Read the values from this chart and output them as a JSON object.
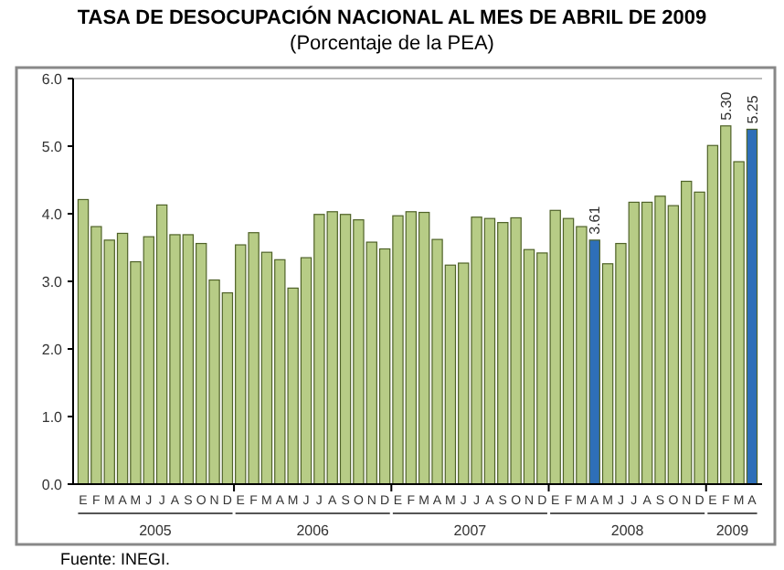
{
  "chart_data": {
    "type": "bar",
    "title": "TASA DE DESOCUPACIÓN NACIONAL AL MES DE ABRIL DE 2009",
    "subtitle": "(Porcentaje de la PEA)",
    "categories": [
      "E",
      "F",
      "M",
      "A",
      "M",
      "J",
      "J",
      "A",
      "S",
      "O",
      "N",
      "D",
      "E",
      "F",
      "M",
      "A",
      "M",
      "J",
      "J",
      "A",
      "S",
      "O",
      "N",
      "D",
      "E",
      "F",
      "M",
      "A",
      "M",
      "J",
      "J",
      "A",
      "S",
      "O",
      "N",
      "D",
      "E",
      "F",
      "M",
      "A",
      "M",
      "J",
      "J",
      "A",
      "S",
      "O",
      "N",
      "D",
      "E",
      "F",
      "M",
      "A"
    ],
    "values": [
      4.21,
      3.81,
      3.61,
      3.71,
      3.29,
      3.66,
      4.13,
      3.69,
      3.69,
      3.56,
      3.02,
      2.83,
      3.54,
      3.72,
      3.43,
      3.32,
      2.9,
      3.35,
      3.99,
      4.03,
      3.99,
      3.91,
      3.58,
      3.48,
      3.97,
      4.03,
      4.02,
      3.62,
      3.24,
      3.27,
      3.95,
      3.93,
      3.87,
      3.94,
      3.47,
      3.42,
      4.05,
      3.93,
      3.81,
      3.61,
      3.26,
      3.56,
      4.17,
      4.17,
      4.26,
      4.12,
      4.48,
      4.32,
      5.01,
      5.3,
      4.77,
      5.25
    ],
    "colors": [
      "#b7cc86",
      "#b7cc86",
      "#b7cc86",
      "#b7cc86",
      "#b7cc86",
      "#b7cc86",
      "#b7cc86",
      "#b7cc86",
      "#b7cc86",
      "#b7cc86",
      "#b7cc86",
      "#b7cc86",
      "#b7cc86",
      "#b7cc86",
      "#b7cc86",
      "#b7cc86",
      "#b7cc86",
      "#b7cc86",
      "#b7cc86",
      "#b7cc86",
      "#b7cc86",
      "#b7cc86",
      "#b7cc86",
      "#b7cc86",
      "#b7cc86",
      "#b7cc86",
      "#b7cc86",
      "#b7cc86",
      "#b7cc86",
      "#b7cc86",
      "#b7cc86",
      "#b7cc86",
      "#b7cc86",
      "#b7cc86",
      "#b7cc86",
      "#b7cc86",
      "#b7cc86",
      "#b7cc86",
      "#b7cc86",
      "#2e6fb8",
      "#b7cc86",
      "#b7cc86",
      "#b7cc86",
      "#b7cc86",
      "#b7cc86",
      "#b7cc86",
      "#b7cc86",
      "#b7cc86",
      "#b7cc86",
      "#b7cc86",
      "#b7cc86",
      "#2e6fb8"
    ],
    "value_labels": [
      null,
      null,
      null,
      null,
      null,
      null,
      null,
      null,
      null,
      null,
      null,
      null,
      null,
      null,
      null,
      null,
      null,
      null,
      null,
      null,
      null,
      null,
      null,
      null,
      null,
      null,
      null,
      null,
      null,
      null,
      null,
      null,
      null,
      null,
      null,
      null,
      null,
      null,
      null,
      "3.61",
      null,
      null,
      null,
      null,
      null,
      null,
      null,
      null,
      null,
      "5.30",
      null,
      "5.25"
    ],
    "ylim": [
      0,
      6
    ],
    "yticks": [
      {
        "value": 0,
        "label": "0.0"
      },
      {
        "value": 1,
        "label": "1.0"
      },
      {
        "value": 2,
        "label": "2.0"
      },
      {
        "value": 3,
        "label": "3.0"
      },
      {
        "value": 4,
        "label": "4.0"
      },
      {
        "value": 5,
        "label": "5.0"
      },
      {
        "value": 6,
        "label": "6.0"
      }
    ],
    "annotations": [
      "2005",
      "2006",
      "2007",
      "2008",
      "2009",
      "Fuente: INEGI."
    ]
  }
}
